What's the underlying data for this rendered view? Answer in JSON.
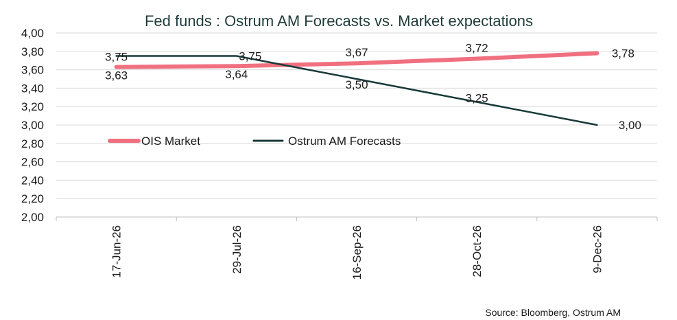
{
  "chart_data": {
    "type": "line",
    "title": "Fed funds : Ostrum AM Forecasts vs. Market expectations",
    "categories": [
      "17-Jun-26",
      "29-Jul-26",
      "16-Sep-26",
      "28-Oct-26",
      "9-Dec-26"
    ],
    "yticks": [
      "2,00",
      "2,20",
      "2,40",
      "2,60",
      "2,80",
      "3,00",
      "3,20",
      "3,40",
      "3,60",
      "3,80",
      "4,00"
    ],
    "ylim": [
      2.0,
      4.0
    ],
    "grid": true,
    "legend_position": "middle-left",
    "series": [
      {
        "name": "OIS Market",
        "color": "#f07080",
        "values": [
          3.63,
          3.64,
          3.67,
          3.72,
          3.78
        ],
        "labels": [
          "3,63",
          "3,64",
          "3,67",
          "3,72",
          "3,78"
        ]
      },
      {
        "name": "Ostrum AM Forecasts",
        "color": "#18393a",
        "values": [
          3.75,
          3.75,
          3.5,
          3.25,
          3.0
        ],
        "labels": [
          "3,75",
          "3,75",
          "3,50",
          "3,25",
          "3,00"
        ]
      }
    ],
    "source": "Source: Bloomberg, Ostrum AM"
  }
}
